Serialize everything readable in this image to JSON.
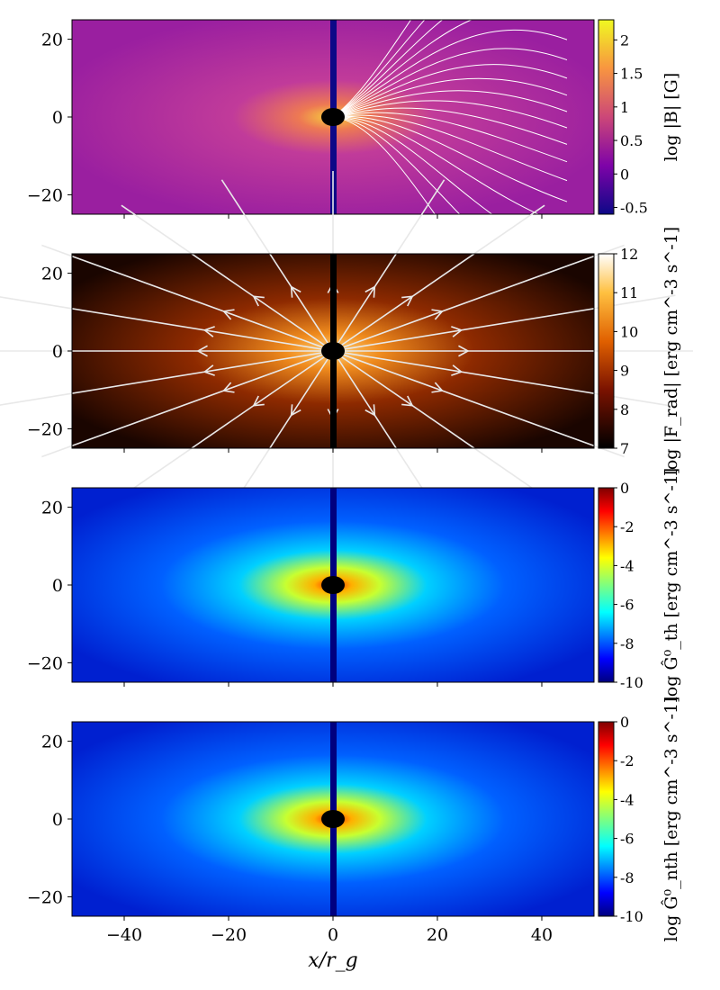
{
  "chart_data": [
    {
      "type": "heatmap",
      "xlabel": "",
      "ylabel": "",
      "xlim": [
        -50,
        50
      ],
      "ylim": [
        -25,
        25
      ],
      "x_ticks": [
        -40,
        -20,
        0,
        20,
        40
      ],
      "y_ticks": [
        -20,
        0,
        20
      ],
      "colormap": "plasma",
      "colorbar": {
        "label": "log |B| [G]",
        "range": [
          -0.6,
          2.3
        ],
        "ticks": [
          -0.5,
          0,
          0.5,
          1,
          1.5,
          2
        ],
        "tick_labels": [
          "-0.5",
          "0",
          "0.5",
          "1",
          "1.5",
          "2"
        ]
      },
      "overlay": "magnetic field lines (white contours)"
    },
    {
      "type": "heatmap",
      "xlabel": "",
      "ylabel": "",
      "xlim": [
        -50,
        50
      ],
      "ylim": [
        -25,
        25
      ],
      "x_ticks": [
        -40,
        -20,
        0,
        20,
        40
      ],
      "y_ticks": [
        -20,
        0,
        20
      ],
      "colormap": "afmhot",
      "colorbar": {
        "label": "log |F_rad| [erg cm^-3 s^-1]",
        "range": [
          7,
          12
        ],
        "ticks": [
          7,
          8,
          9,
          10,
          11,
          12
        ],
        "tick_labels": [
          "7",
          "8",
          "9",
          "10",
          "11",
          "12"
        ]
      },
      "overlay": "radiative flux streamlines (white arrows)"
    },
    {
      "type": "heatmap",
      "xlabel": "",
      "ylabel": "",
      "xlim": [
        -50,
        50
      ],
      "ylim": [
        -25,
        25
      ],
      "x_ticks": [
        -40,
        -20,
        0,
        20,
        40
      ],
      "y_ticks": [
        -20,
        0,
        20
      ],
      "colormap": "jet",
      "colorbar": {
        "label": "log Ĝ⁰_th [erg cm^-3 s^-1]",
        "range": [
          -10,
          0
        ],
        "ticks": [
          -10,
          -8,
          -6,
          -4,
          -2,
          0
        ],
        "tick_labels": [
          "-10",
          "-8",
          "-6",
          "-4",
          "-2",
          "0"
        ]
      }
    },
    {
      "type": "heatmap",
      "xlabel": "x/r_g",
      "ylabel": "",
      "xlim": [
        -50,
        50
      ],
      "ylim": [
        -25,
        25
      ],
      "x_ticks": [
        -40,
        -20,
        0,
        20,
        40
      ],
      "y_ticks": [
        -20,
        0,
        20
      ],
      "colormap": "jet",
      "colorbar": {
        "label": "log Ĝ⁰_nth [erg cm^-3 s^-1]",
        "range": [
          -10,
          0
        ],
        "ticks": [
          -10,
          -8,
          -6,
          -4,
          -2,
          0
        ],
        "tick_labels": [
          "-10",
          "-8",
          "-6",
          "-4",
          "-2",
          "0"
        ]
      }
    }
  ]
}
